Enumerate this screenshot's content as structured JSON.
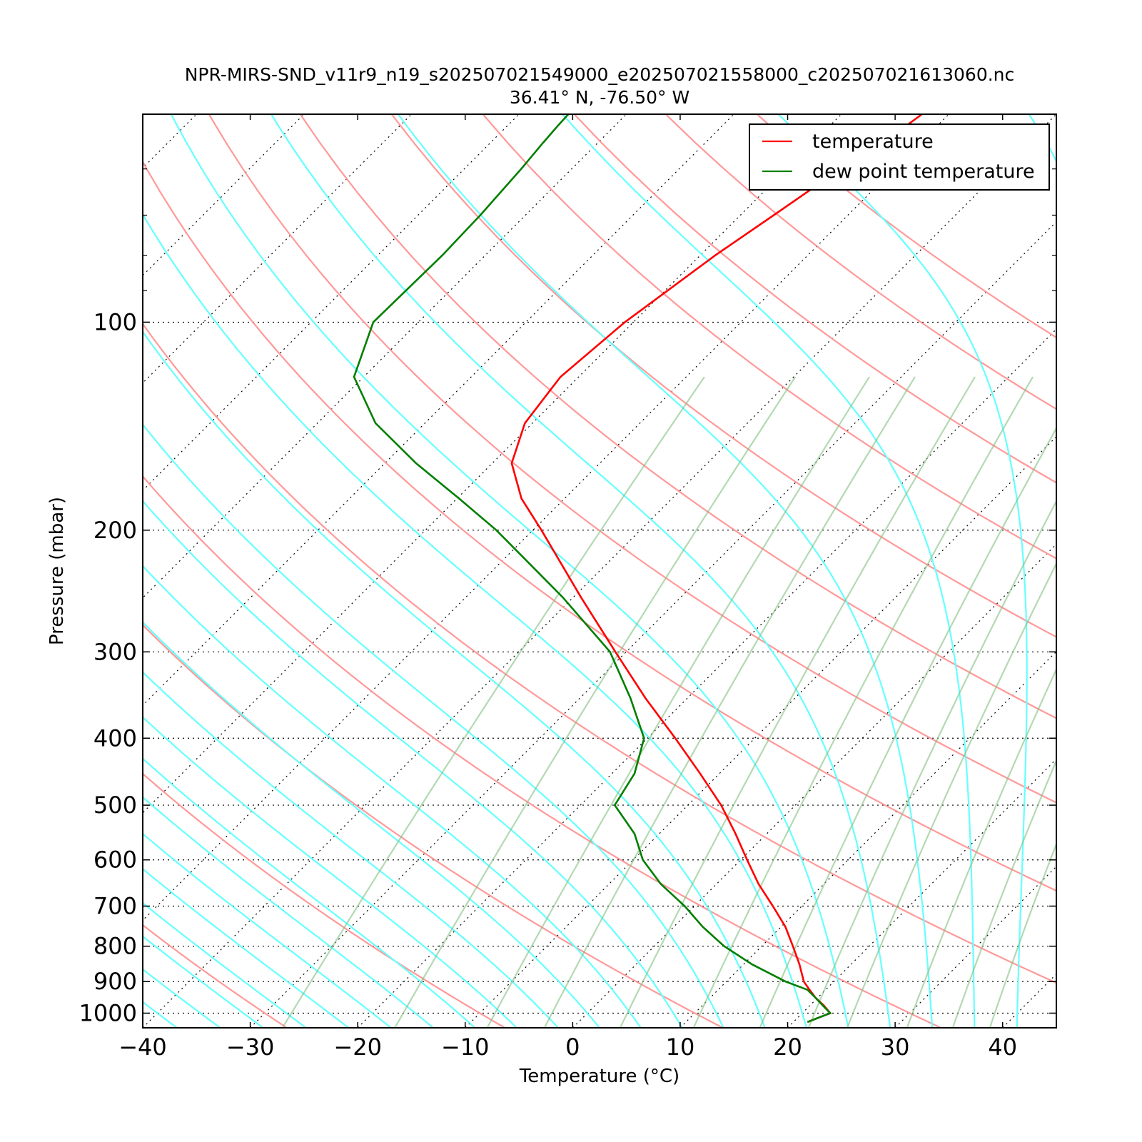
{
  "chart_data": {
    "type": "line",
    "title": "NPR-MIRS-SND_v11r9_n19_s202507021549000_e202507021558000_c202507021613060.nc",
    "subtitle": "36.41° N, -76.50° W",
    "xlabel": "Temperature (°C)",
    "ylabel": "Pressure (mbar)",
    "xlim": [
      -40,
      45
    ],
    "ylim": [
      1050,
      50
    ],
    "y_scale": "log",
    "x_ticks": [
      "−40",
      "−30",
      "−20",
      "−10",
      "0",
      "10",
      "20",
      "30",
      "40"
    ],
    "y_ticks": [
      "100",
      "200",
      "300",
      "400",
      "500",
      "600",
      "700",
      "800",
      "900",
      "1000"
    ],
    "grid": "pressure-dotted",
    "legend": "top-right",
    "colors": {
      "temperature": "#ff0000",
      "dewpoint": "#007f00",
      "dry_adiabat": "#ff9999",
      "moist_adiabat": "#66ffff",
      "mixing_ratio": "#80c080",
      "isotherm": "#000000"
    },
    "series": [
      {
        "name": "temperature",
        "pressure": [
          1030,
          1000,
          975,
          950,
          925,
          900,
          850,
          800,
          750,
          700,
          650,
          600,
          550,
          500,
          450,
          400,
          350,
          300,
          250,
          200,
          180,
          160,
          140,
          120,
          100,
          80,
          70,
          60,
          55,
          52,
          50
        ],
        "temp": [
          21.3,
          22.6,
          21.3,
          19.8,
          18.5,
          17.2,
          15.2,
          12.9,
          10.4,
          7.3,
          3.9,
          0.6,
          -2.9,
          -6.9,
          -11.8,
          -17.4,
          -23.9,
          -31.0,
          -39.3,
          -49.2,
          -54.0,
          -58.2,
          -60.7,
          -61.7,
          -60.8,
          -58.6,
          -56.9,
          -55.0,
          -53.6,
          -52.9,
          -52.5
        ]
      },
      {
        "name": "dew point temperature",
        "pressure": [
          1030,
          1000,
          975,
          950,
          925,
          900,
          850,
          800,
          750,
          700,
          650,
          600,
          550,
          500,
          450,
          400,
          350,
          300,
          250,
          200,
          180,
          160,
          140,
          120,
          100,
          80,
          70,
          60,
          55,
          52,
          50
        ],
        "temp": [
          21.3,
          22.6,
          21.2,
          19.8,
          18.3,
          15.5,
          10.8,
          6.5,
          2.7,
          -0.9,
          -5.2,
          -9.1,
          -12.3,
          -16.8,
          -17.9,
          -20.3,
          -25.3,
          -31.5,
          -41.0,
          -53.4,
          -59.8,
          -67.1,
          -74.6,
          -80.9,
          -84.2,
          -84.0,
          -84.2,
          -84.7,
          -85.1,
          -85.3,
          -85.4
        ]
      }
    ]
  }
}
